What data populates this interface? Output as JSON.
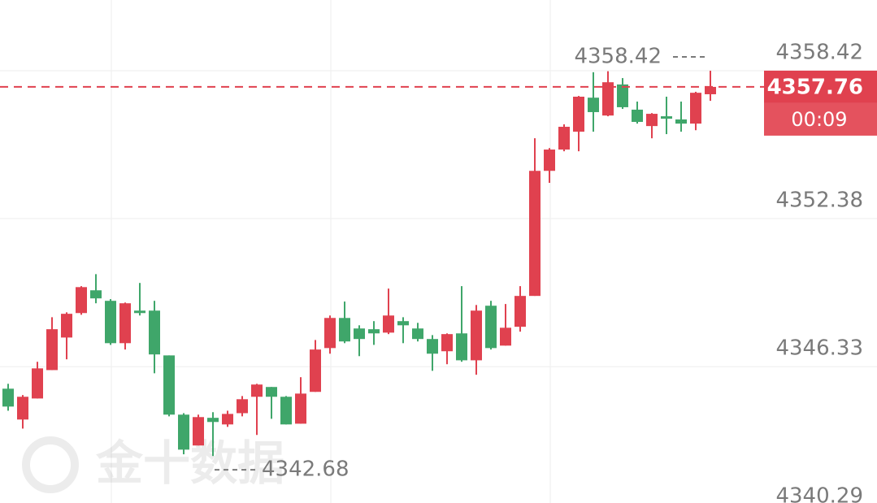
{
  "chart_data": {
    "type": "candlestick",
    "categories": [
      null,
      null,
      null,
      null,
      null,
      null,
      null,
      null,
      null,
      null,
      null,
      null,
      null,
      null,
      null,
      null,
      null,
      null,
      null,
      null,
      null,
      null,
      null,
      null,
      null,
      null,
      null,
      null,
      null,
      null,
      null,
      null,
      null,
      null,
      null,
      null,
      null,
      null,
      null,
      null,
      null,
      null,
      null,
      null,
      null,
      null,
      null,
      null,
      null
    ],
    "open": [
      4345.43,
      4344.17,
      4345.03,
      4346.19,
      4347.52,
      4348.52,
      4349.45,
      4349.02,
      4347.29,
      4348.62,
      4348.62,
      4346.79,
      4344.37,
      4343.11,
      4344.24,
      4343.97,
      4344.43,
      4345.1,
      4345.5,
      4345.1,
      4344.0,
      4345.3,
      4347.09,
      4348.32,
      4347.89,
      4347.86,
      4347.72,
      4348.19,
      4347.89,
      4347.46,
      4346.96,
      4347.69,
      4346.59,
      4348.82,
      4347.19,
      4347.96,
      4349.22,
      4354.33,
      4355.2,
      4355.93,
      4357.32,
      4356.59,
      4357.86,
      4356.83,
      4356.16,
      4356.56,
      4356.43,
      4356.26,
      4357.46
    ],
    "high": [
      4345.63,
      4345.17,
      4346.53,
      4348.35,
      4348.55,
      4349.62,
      4350.11,
      4349.09,
      4348.95,
      4349.75,
      4349.02,
      4346.79,
      4344.43,
      4344.37,
      4344.47,
      4344.53,
      4345.13,
      4345.63,
      4345.5,
      4345.13,
      4345.9,
      4347.42,
      4348.42,
      4348.99,
      4348.02,
      4348.19,
      4349.52,
      4348.35,
      4348.12,
      4347.62,
      4347.69,
      4349.62,
      4348.85,
      4349.02,
      4348.89,
      4349.62,
      4355.66,
      4355.26,
      4356.23,
      4357.39,
      4358.36,
      4358.4,
      4358.12,
      4357.16,
      4356.69,
      4357.36,
      4357.16,
      4357.56,
      4358.42
    ],
    "low": [
      4344.53,
      4343.8,
      4345.03,
      4346.19,
      4346.63,
      4348.45,
      4348.92,
      4347.22,
      4347.03,
      4348.42,
      4346.06,
      4344.3,
      4342.75,
      4343.11,
      4342.68,
      4343.87,
      4344.3,
      4343.54,
      4344.2,
      4343.97,
      4344.0,
      4345.3,
      4346.86,
      4347.29,
      4346.76,
      4347.22,
      4347.66,
      4347.29,
      4347.36,
      4346.16,
      4346.43,
      4346.53,
      4346.0,
      4347.03,
      4347.19,
      4347.76,
      4349.22,
      4353.84,
      4355.13,
      4355.13,
      4355.93,
      4356.56,
      4356.86,
      4356.26,
      4355.66,
      4355.83,
      4355.93,
      4355.99,
      4357.19
    ],
    "close": [
      4344.7,
      4345.1,
      4346.26,
      4347.86,
      4348.49,
      4349.58,
      4349.12,
      4347.29,
      4348.92,
      4348.52,
      4346.83,
      4344.37,
      4342.94,
      4344.27,
      4344.07,
      4344.4,
      4345.0,
      4345.6,
      4345.1,
      4343.97,
      4345.23,
      4347.03,
      4348.32,
      4347.36,
      4347.46,
      4347.69,
      4348.42,
      4348.02,
      4347.46,
      4346.86,
      4347.66,
      4346.59,
      4348.62,
      4347.09,
      4347.92,
      4349.22,
      4354.33,
      4355.2,
      4356.13,
      4357.36,
      4356.73,
      4357.95,
      4356.93,
      4356.33,
      4356.66,
      4356.46,
      4356.26,
      4357.52,
      4357.76
    ],
    "up_color": "#e0414f",
    "down_color": "#3fa66a",
    "ylim": [
      4340.76,
      4361.31
    ],
    "yticks": [
      4340.29,
      4346.33,
      4352.38,
      4358.42
    ],
    "grid": true,
    "high_label": 4358.42,
    "low_label": 4342.68,
    "current_price": 4357.76,
    "countdown": "00:09",
    "watermark": "金十数据"
  }
}
